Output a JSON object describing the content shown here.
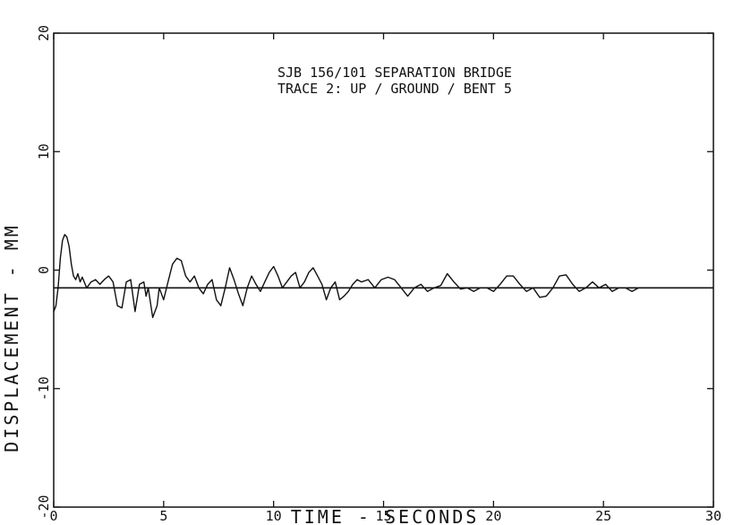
{
  "chart_data": {
    "type": "line",
    "title_lines": [
      "SJB 156/101 SEPARATION BRIDGE",
      "TRACE 2:  UP / GROUND / BENT 5"
    ],
    "xlabel": "TIME  - SECONDS",
    "ylabel": "DISPLACEMENT  -  MM",
    "xlim": [
      0,
      30
    ],
    "ylim": [
      -20,
      20
    ],
    "x_ticks": [
      0,
      5,
      10,
      15,
      20,
      25,
      30
    ],
    "y_ticks": [
      -20,
      -10,
      0,
      10,
      20
    ],
    "x_tick_labels": [
      "0",
      "5",
      "10",
      "15",
      "20",
      "25",
      "30"
    ],
    "y_tick_labels": [
      "-20",
      "-10",
      "0",
      "10",
      "20"
    ],
    "grid": false,
    "baseline": -1.5,
    "series": [
      {
        "x": [
          0,
          0.1,
          0.2,
          0.3,
          0.4,
          0.5,
          0.6,
          0.7,
          0.8,
          0.9,
          1.0,
          1.1,
          1.2,
          1.3,
          1.5,
          1.7,
          1.9,
          2.1,
          2.3,
          2.5,
          2.7,
          2.9,
          3.1,
          3.3,
          3.5,
          3.7,
          3.9,
          4.1,
          4.2,
          4.3,
          4.5,
          4.7,
          4.8,
          5.0,
          5.2,
          5.4,
          5.6,
          5.8,
          6.0,
          6.2,
          6.4,
          6.6,
          6.8,
          7.0,
          7.2,
          7.4,
          7.6,
          7.8,
          8.0,
          8.2,
          8.4,
          8.6,
          8.8,
          9.0,
          9.2,
          9.4,
          9.6,
          9.8,
          10.0,
          10.2,
          10.4,
          10.6,
          10.8,
          11.0,
          11.2,
          11.4,
          11.6,
          11.8,
          12.0,
          12.2,
          12.4,
          12.6,
          12.8,
          13.0,
          13.2,
          13.4,
          13.6,
          13.8,
          14.0,
          14.3,
          14.6,
          14.9,
          15.2,
          15.5,
          15.8,
          16.1,
          16.4,
          16.7,
          17.0,
          17.3,
          17.6,
          17.9,
          18.2,
          18.5,
          18.8,
          19.1,
          19.4,
          19.7,
          20.0,
          20.3,
          20.6,
          20.9,
          21.2,
          21.5,
          21.8,
          22.1,
          22.4,
          22.7,
          23.0,
          23.3,
          23.6,
          23.9,
          24.2,
          24.5,
          24.8,
          25.1,
          25.4,
          25.7,
          26.0,
          26.3,
          26.6,
          26.9,
          27.2
        ],
        "y": [
          -3.5,
          -3.0,
          -1.5,
          1.0,
          2.5,
          3.0,
          2.8,
          2.0,
          0.5,
          -0.5,
          -0.8,
          -0.3,
          -1.0,
          -0.6,
          -1.5,
          -1.0,
          -0.8,
          -1.2,
          -0.8,
          -0.5,
          -1.0,
          -3.0,
          -3.2,
          -1.0,
          -0.8,
          -3.5,
          -1.2,
          -1.0,
          -2.2,
          -1.5,
          -4.0,
          -3.0,
          -1.5,
          -2.5,
          -1.0,
          0.5,
          1.0,
          0.8,
          -0.5,
          -1.0,
          -0.5,
          -1.5,
          -2.0,
          -1.2,
          -0.8,
          -2.5,
          -3.0,
          -1.5,
          0.2,
          -0.8,
          -2.0,
          -3.0,
          -1.5,
          -0.5,
          -1.2,
          -1.8,
          -1.0,
          -0.2,
          0.3,
          -0.5,
          -1.5,
          -1.0,
          -0.5,
          -0.2,
          -1.5,
          -1.0,
          -0.2,
          0.2,
          -0.5,
          -1.2,
          -2.5,
          -1.5,
          -1.0,
          -2.5,
          -2.2,
          -1.8,
          -1.2,
          -0.8,
          -1.0,
          -0.8,
          -1.5,
          -0.8,
          -0.6,
          -0.8,
          -1.5,
          -2.2,
          -1.5,
          -1.2,
          -1.8,
          -1.5,
          -1.3,
          -0.3,
          -1.0,
          -1.6,
          -1.5,
          -1.8,
          -1.5,
          -1.5,
          -1.8,
          -1.2,
          -0.5,
          -0.5,
          -1.2,
          -1.8,
          -1.5,
          -2.3,
          -2.2,
          -1.5,
          -0.5,
          -0.4,
          -1.2,
          -1.8,
          -1.5,
          -1.0,
          -1.5,
          -1.2,
          -1.8,
          -1.5,
          -1.5,
          -1.8,
          -1.5,
          -1.5,
          -1.5
        ]
      }
    ]
  }
}
